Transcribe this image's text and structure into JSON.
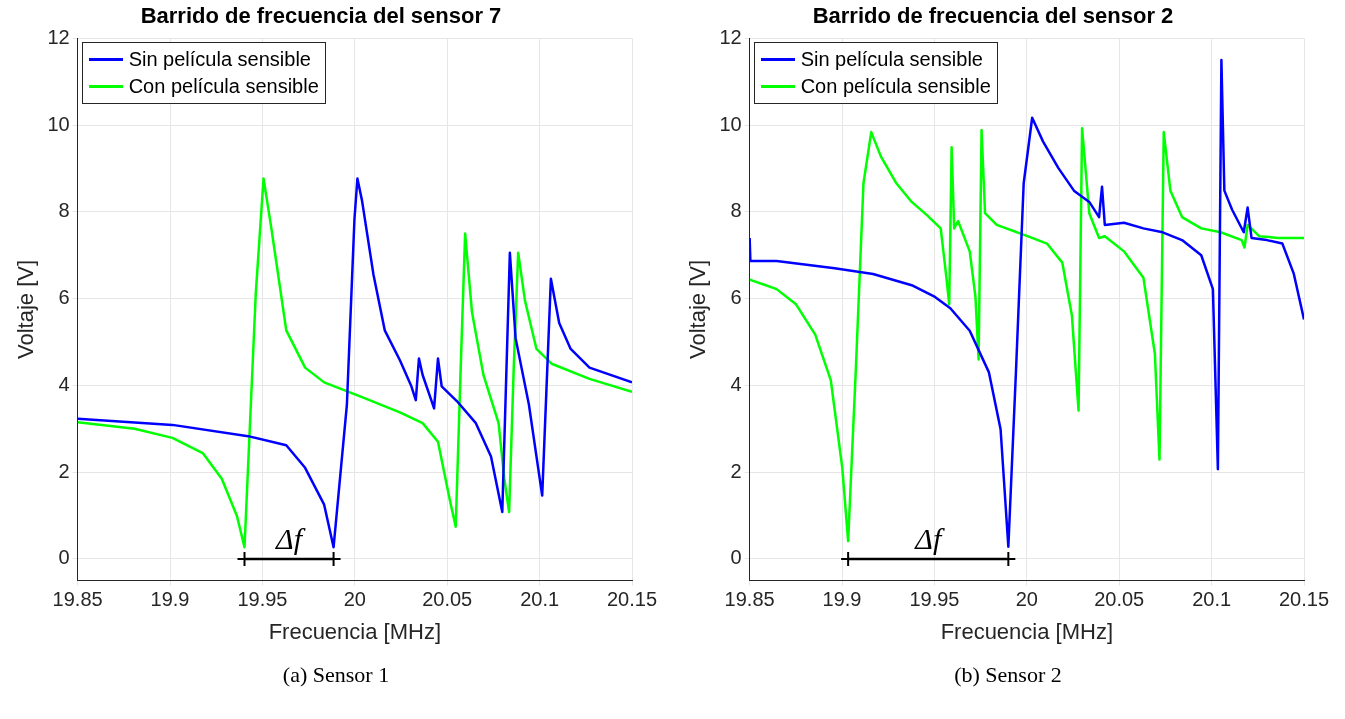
{
  "chart_data": [
    {
      "type": "line",
      "title": "Barrido de frecuencia del sensor 7",
      "xlabel": "Frecuencia [MHz]",
      "ylabel": "Voltaje [V]",
      "xlim": [
        19.85,
        20.15
      ],
      "xticks": [
        19.85,
        19.9,
        19.95,
        20,
        20.05,
        20.1,
        20.15
      ],
      "ylim": [
        -0.5,
        12
      ],
      "yticks": [
        0,
        2,
        4,
        6,
        8,
        10,
        12
      ],
      "grid": true,
      "legend": "top left",
      "marker": "none",
      "line_style": "solid",
      "series": [
        {
          "name": "Sin película sensible",
          "color": "#0000ff",
          "x": [
            19.85,
            19.9013,
            19.9423,
            19.9629,
            19.9731,
            19.9834,
            19.9885,
            19.9957,
            19.9998,
            20.0014,
            20.0039,
            20.0101,
            20.0162,
            20.0244,
            20.0306,
            20.033,
            20.0347,
            20.0367,
            20.0429,
            20.045,
            20.047,
            20.0552,
            20.0655,
            20.0737,
            20.0798,
            20.0839,
            20.087,
            20.0942,
            20.1014,
            20.1061,
            20.1106,
            20.1168,
            20.127,
            20.15
          ],
          "values": [
            3.23,
            3.09,
            2.83,
            2.62,
            2.1,
            1.25,
            0.27,
            3.55,
            7.83,
            8.77,
            8.26,
            6.55,
            5.27,
            4.58,
            3.98,
            3.66,
            4.62,
            4.24,
            3.47,
            4.62,
            3.98,
            3.64,
            3.13,
            2.36,
            1.08,
            7.06,
            5.09,
            3.56,
            1.46,
            6.46,
            5.44,
            4.84,
            4.41,
            4.07
          ]
        },
        {
          "name": "Con película sensible",
          "color": "#00ff00",
          "x": [
            19.85,
            19.8808,
            19.9013,
            19.9177,
            19.928,
            19.9362,
            19.9403,
            19.9464,
            19.9506,
            19.9547,
            19.9629,
            19.9731,
            19.9834,
            20.0039,
            20.0244,
            20.0367,
            20.045,
            20.0511,
            20.0546,
            20.0573,
            20.0597,
            20.0634,
            20.0696,
            20.0778,
            20.0809,
            20.0835,
            20.086,
            20.0884,
            20.0921,
            20.0983,
            20.1065,
            20.127,
            20.15
          ],
          "values": [
            3.15,
            3.0,
            2.79,
            2.44,
            1.85,
            0.99,
            0.27,
            6.12,
            8.77,
            7.66,
            5.27,
            4.41,
            4.07,
            3.73,
            3.38,
            3.13,
            2.7,
            1.42,
            0.74,
            4.41,
            7.5,
            5.69,
            4.24,
            3.13,
            1.85,
            1.08,
            4.41,
            7.06,
            5.95,
            4.84,
            4.5,
            4.15,
            3.85
          ]
        },
        {
          "color": "#000000",
          "marker": "cross",
          "x": [
            19.9403,
            19.9885
          ],
          "values": [
            0,
            0
          ]
        }
      ],
      "annotations": [
        {
          "text": "Δf",
          "x": 19.9644,
          "y": 0
        },
        "(a) Sensor 1"
      ]
    },
    {
      "type": "line",
      "title": "Barrido de frecuencia del sensor 2",
      "xlabel": "Frecuencia [MHz]",
      "ylabel": "Voltaje [V]",
      "xlim": [
        19.85,
        20.15
      ],
      "xticks": [
        19.85,
        19.9,
        19.95,
        20,
        20.05,
        20.1,
        20.15
      ],
      "ylim": [
        -0.5,
        12
      ],
      "yticks": [
        0,
        2,
        4,
        6,
        8,
        10,
        12
      ],
      "grid": true,
      "legend": "top left",
      "marker": "none",
      "line_style": "solid",
      "series": [
        {
          "name": "Sin película sensible",
          "color": "#0000ff",
          "x": [
            19.85,
            19.8504,
            19.8646,
            19.896,
            19.9168,
            19.9377,
            19.9503,
            19.9586,
            19.9691,
            19.9795,
            19.9858,
            19.99,
            19.9941,
            19.9983,
            20.0029,
            20.0088,
            20.0171,
            20.0255,
            20.0338,
            20.0391,
            20.0407,
            20.0422,
            20.0526,
            20.0631,
            20.0735,
            20.084,
            20.0944,
            20.1007,
            20.1034,
            20.1053,
            20.1069,
            20.1111,
            20.1174,
            20.1195,
            20.1216,
            20.1299,
            20.1383,
            20.1445,
            20.15
          ],
          "values": [
            7.4,
            6.87,
            6.87,
            6.7,
            6.57,
            6.31,
            6.04,
            5.78,
            5.26,
            4.3,
            2.99,
            0.28,
            4.3,
            8.66,
            10.17,
            9.62,
            9.01,
            8.49,
            8.23,
            7.88,
            8.58,
            7.7,
            7.75,
            7.62,
            7.53,
            7.35,
            7.0,
            6.22,
            2.07,
            11.5,
            8.49,
            8.05,
            7.53,
            8.1,
            7.4,
            7.35,
            7.27,
            6.57,
            5.52
          ]
        },
        {
          "name": "Con película sensible",
          "color": "#00ff00",
          "x": [
            19.85,
            19.8646,
            19.8751,
            19.8855,
            19.8939,
            19.9001,
            19.9033,
            19.9074,
            19.9116,
            19.9158,
            19.921,
            19.9294,
            19.9377,
            19.9461,
            19.9534,
            19.9565,
            19.958,
            19.9593,
            19.9607,
            19.9628,
            19.9691,
            19.9722,
            19.9739,
            19.9755,
            19.9774,
            19.9837,
            20.0004,
            20.0109,
            20.0192,
            20.0244,
            20.028,
            20.0299,
            20.0338,
            20.0391,
            20.0422,
            20.0526,
            20.0631,
            20.0693,
            20.0718,
            20.0741,
            20.0777,
            20.084,
            20.0944,
            20.1049,
            20.1163,
            20.1178,
            20.1195,
            20.1257,
            20.1362,
            20.15
          ],
          "values": [
            6.44,
            6.22,
            5.87,
            5.17,
            4.12,
            2.11,
            0.41,
            4.3,
            8.66,
            9.84,
            9.28,
            8.66,
            8.23,
            7.92,
            7.62,
            6.48,
            5.87,
            9.49,
            7.62,
            7.79,
            7.09,
            6.04,
            4.6,
            9.89,
            7.97,
            7.7,
            7.44,
            7.27,
            6.83,
            5.61,
            3.42,
            9.93,
            7.97,
            7.4,
            7.44,
            7.09,
            6.48,
            4.73,
            2.29,
            9.84,
            8.49,
            7.88,
            7.62,
            7.53,
            7.35,
            7.18,
            7.7,
            7.44,
            7.4,
            7.4
          ]
        },
        {
          "color": "#000000",
          "marker": "cross",
          "x": [
            19.9033,
            19.99
          ],
          "values": [
            0,
            0
          ]
        }
      ],
      "annotations": [
        {
          "text": "Δf",
          "x": 19.94665,
          "y": 0
        },
        "(b) Sensor 2"
      ]
    }
  ]
}
